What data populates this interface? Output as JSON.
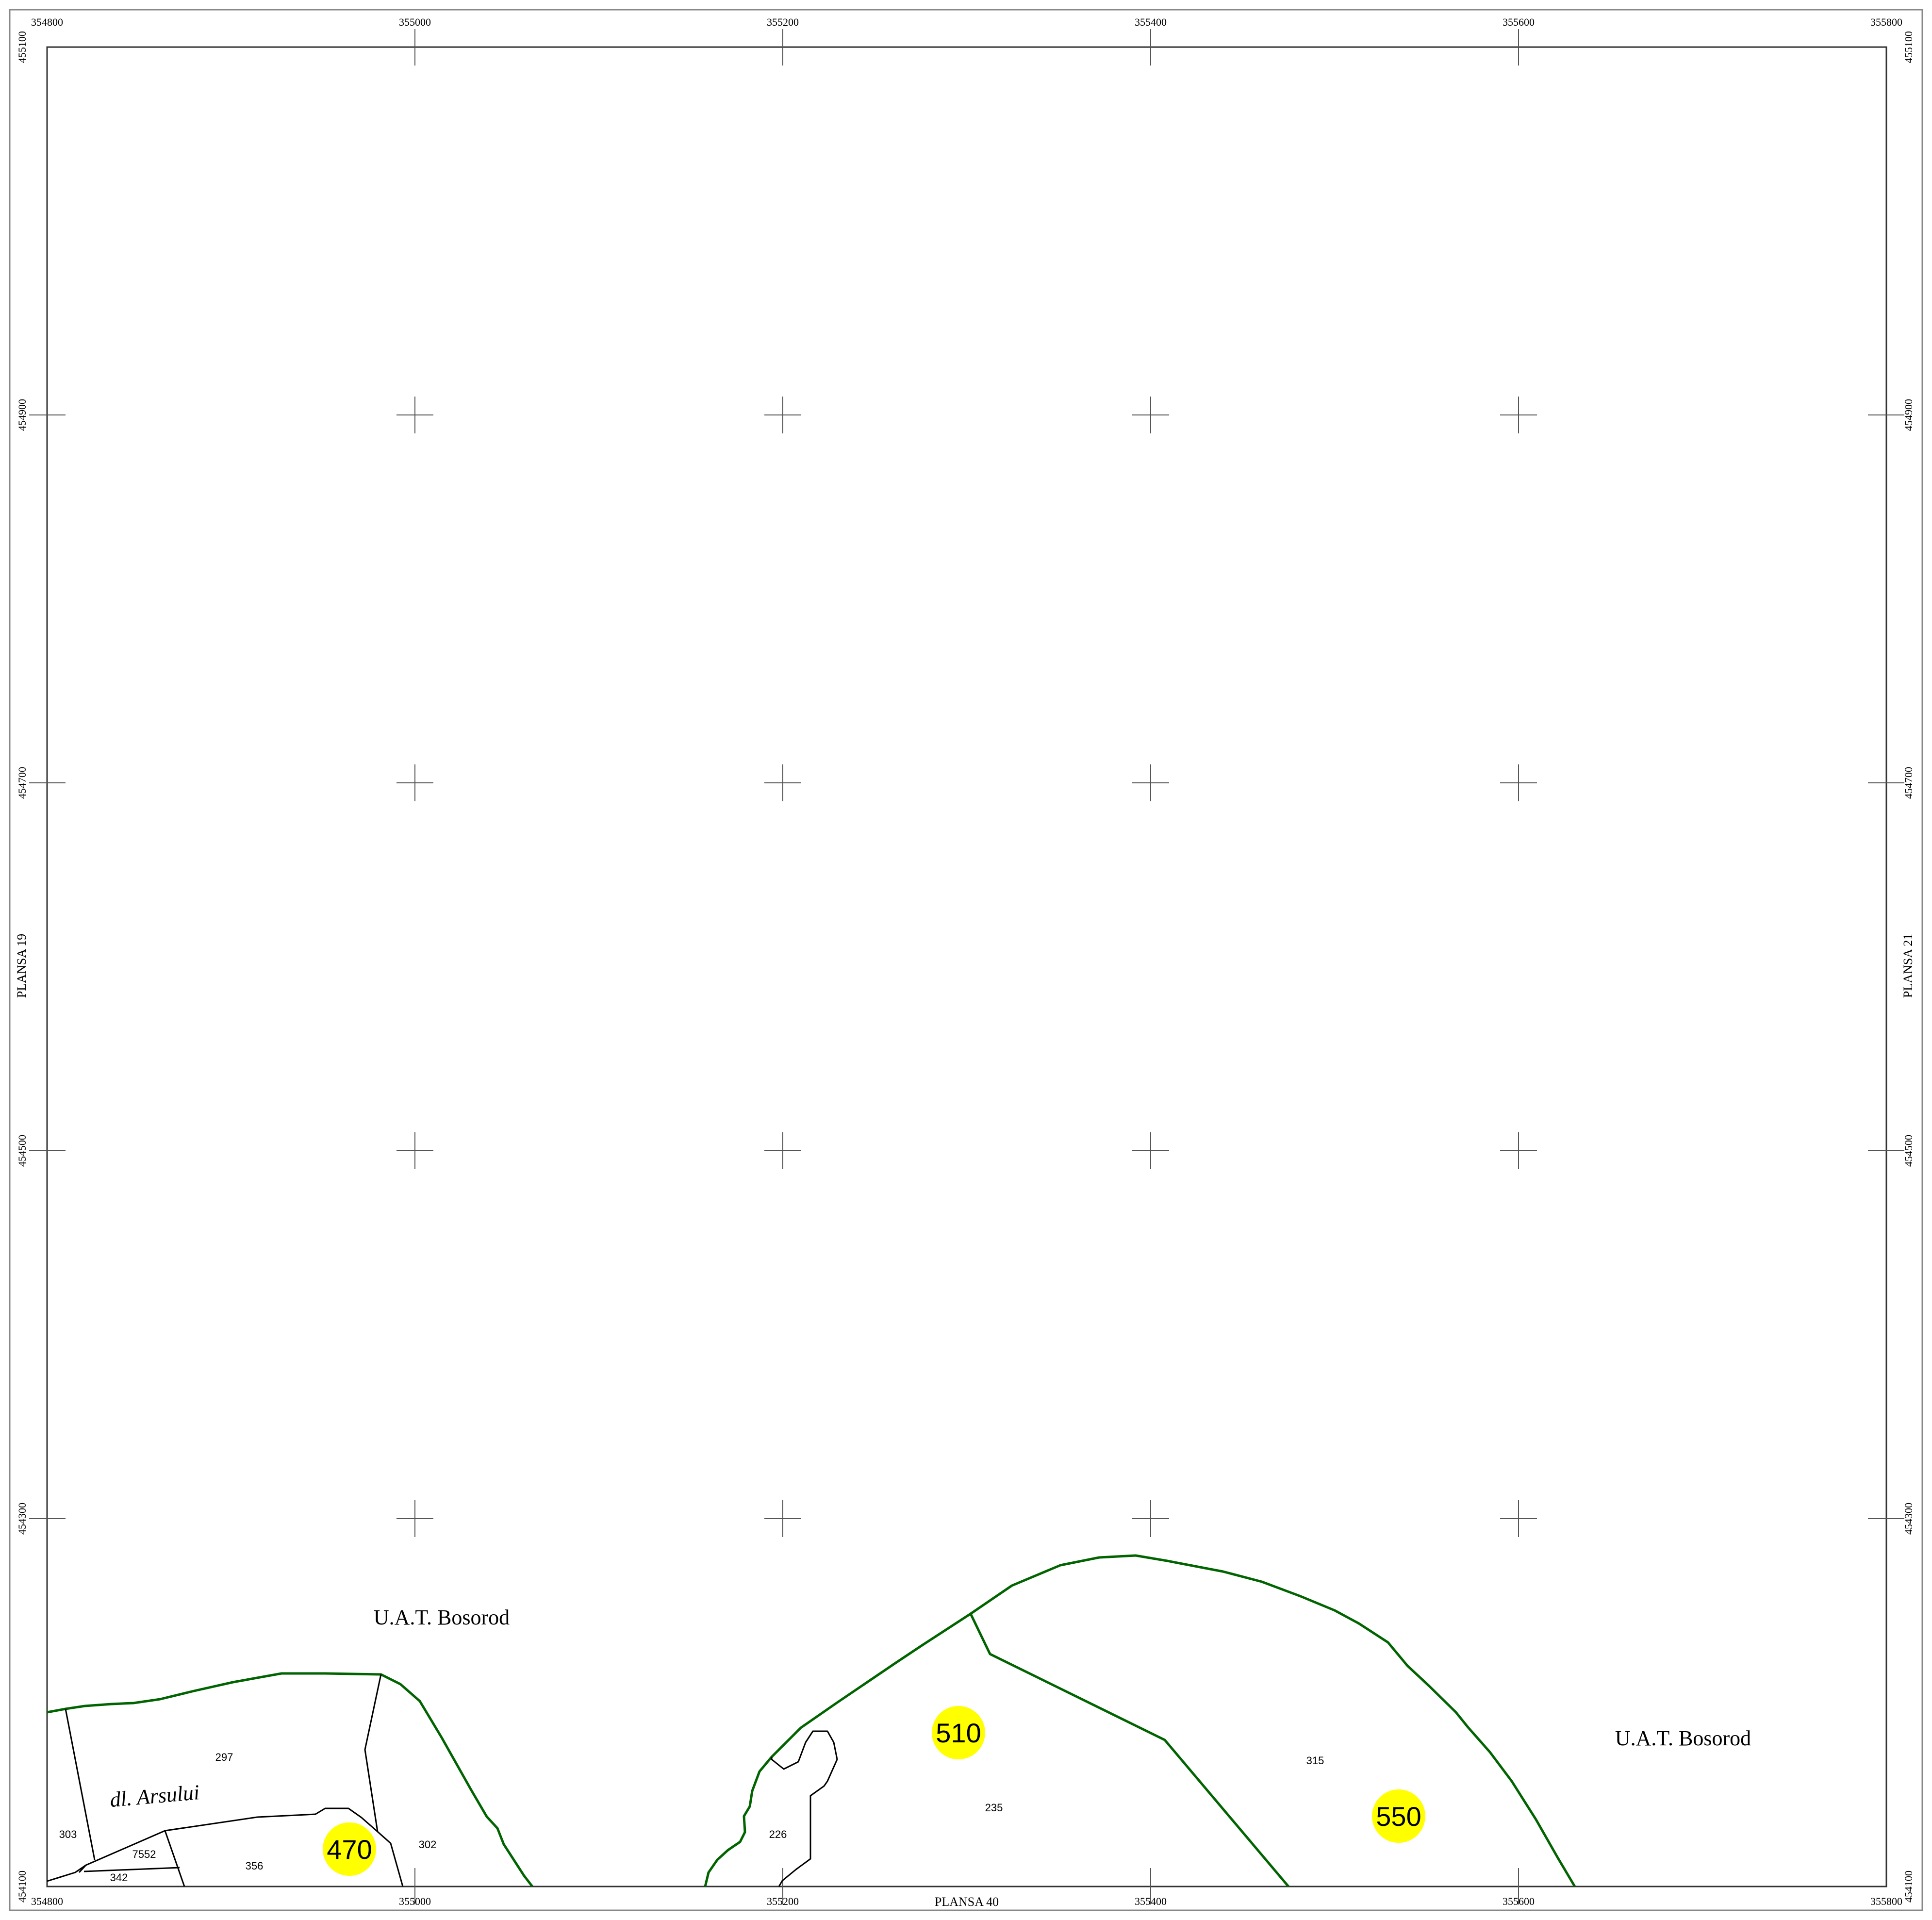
{
  "map": {
    "x_ticks": [
      "354800",
      "355000",
      "355200",
      "355400",
      "355600",
      "355800"
    ],
    "y_ticks": [
      "455100",
      "454900",
      "454700",
      "454500",
      "454300",
      "454100"
    ],
    "adjacent_sheets": {
      "left": "PLANSA  19",
      "right": "PLANSA  21",
      "bottom": "PLANSA  40"
    },
    "admin_labels": [
      "U.A.T. Bosorod",
      "U.A.T. Bosorod"
    ],
    "locality_label": "dl. Arsului",
    "parcel_numbers": [
      "297",
      "303",
      "7552",
      "342",
      "356",
      "302",
      "226",
      "235",
      "315"
    ],
    "sector_badges": [
      "470",
      "510",
      "550"
    ],
    "colors": {
      "frame": "#333333",
      "parcel_line": "#000000",
      "boundary_line": "#006400",
      "badge_fill": "#ffff00",
      "text": "#000000"
    }
  }
}
